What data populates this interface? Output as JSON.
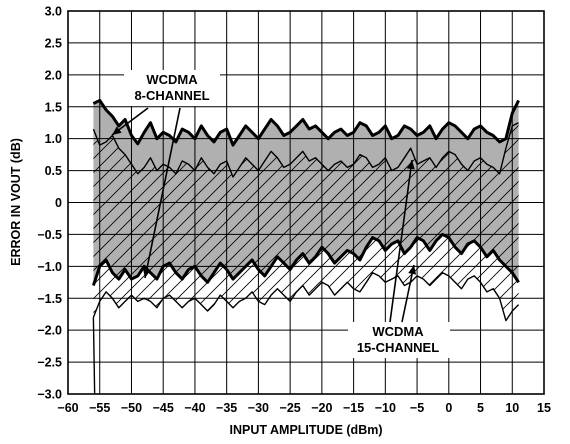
{
  "chart_data": {
    "type": "area",
    "xlabel": "INPUT AMPLITUDE (dBm)",
    "ylabel": "ERROR IN VOUT (dB)",
    "xlim": [
      -60,
      15
    ],
    "ylim": [
      -3.0,
      3.0
    ],
    "x_ticks": [
      -60,
      -55,
      -50,
      -45,
      -40,
      -35,
      -30,
      -25,
      -20,
      -15,
      -10,
      -5,
      0,
      5,
      10,
      15
    ],
    "x_tick_labels": [
      "−60",
      "−55",
      "−50",
      "−45",
      "−40",
      "−35",
      "−30",
      "−25",
      "−20",
      "−15",
      "−10",
      "−5",
      "0",
      "5",
      "10",
      "15"
    ],
    "y_ticks": [
      3.0,
      2.5,
      2.0,
      1.5,
      1.0,
      0.5,
      0,
      -0.5,
      -1.0,
      -1.5,
      -2.0,
      -2.5,
      -3.0
    ],
    "y_tick_labels": [
      "3.0",
      "2.5",
      "2.0",
      "1.5",
      "1.0",
      "0.5",
      "0",
      "−0.5",
      "−1.0",
      "−1.5",
      "−2.0",
      "−2.5",
      "−3.0"
    ],
    "grid": true,
    "colors": {
      "shaded_band": "#b0b0b0",
      "line": "#000000",
      "grid": "#000000"
    },
    "series": [
      {
        "name": "WCDMA 8-CHANNEL",
        "fill": "gray",
        "upper": {
          "x": [
            -56,
            -55,
            -54,
            -53,
            -52,
            -51,
            -50,
            -49,
            -48,
            -47,
            -46,
            -45,
            -44,
            -43,
            -42,
            -41,
            -40,
            -39,
            -38,
            -37,
            -36,
            -35,
            -34,
            -33,
            -32,
            -31,
            -30,
            -29,
            -28,
            -27,
            -26,
            -25,
            -24,
            -23,
            -22,
            -21,
            -20,
            -19,
            -18,
            -17,
            -16,
            -15,
            -14,
            -13,
            -12,
            -11,
            -10,
            -9,
            -8,
            -7,
            -6,
            -5,
            -4,
            -3,
            -2,
            -1,
            0,
            1,
            2,
            3,
            4,
            5,
            6,
            7,
            8,
            9,
            10,
            11
          ],
          "y": [
            1.55,
            1.6,
            1.45,
            1.35,
            1.2,
            1.3,
            1.05,
            0.92,
            1.1,
            1.25,
            1.0,
            1.1,
            1.05,
            0.95,
            1.15,
            1.1,
            1.0,
            1.2,
            1.05,
            0.95,
            1.1,
            1.15,
            0.9,
            1.05,
            1.2,
            1.1,
            1.0,
            1.15,
            1.3,
            1.2,
            1.05,
            1.1,
            1.2,
            1.3,
            1.15,
            1.2,
            1.1,
            1.0,
            1.1,
            1.15,
            1.05,
            1.1,
            1.25,
            1.2,
            1.05,
            1.1,
            1.2,
            1.0,
            1.05,
            1.2,
            1.15,
            1.05,
            1.1,
            1.2,
            1.0,
            1.15,
            1.25,
            1.2,
            1.1,
            1.0,
            1.15,
            1.2,
            1.1,
            1.05,
            0.95,
            1.0,
            1.4,
            1.6
          ]
        },
        "lower": {
          "x": [
            -56,
            -55,
            -54,
            -53,
            -52,
            -51,
            -50,
            -49,
            -48,
            -47,
            -46,
            -45,
            -44,
            -43,
            -42,
            -41,
            -40,
            -39,
            -38,
            -37,
            -36,
            -35,
            -34,
            -33,
            -32,
            -31,
            -30,
            -29,
            -28,
            -27,
            -26,
            -25,
            -24,
            -23,
            -22,
            -21,
            -20,
            -19,
            -18,
            -17,
            -16,
            -15,
            -14,
            -13,
            -12,
            -11,
            -10,
            -9,
            -8,
            -7,
            -6,
            -5,
            -4,
            -3,
            -2,
            -1,
            0,
            1,
            2,
            3,
            4,
            5,
            6,
            7,
            8,
            9,
            10,
            11
          ],
          "y": [
            -1.3,
            -1.0,
            -0.9,
            -1.1,
            -1.2,
            -1.05,
            -1.2,
            -1.15,
            -1.0,
            -1.1,
            -1.2,
            -1.0,
            -0.95,
            -1.1,
            -1.2,
            -1.05,
            -1.0,
            -1.15,
            -1.25,
            -1.1,
            -0.95,
            -1.05,
            -1.2,
            -1.1,
            -1.0,
            -0.9,
            -1.05,
            -1.15,
            -1.0,
            -0.85,
            -0.95,
            -1.05,
            -0.9,
            -0.8,
            -0.95,
            -0.85,
            -0.7,
            -0.8,
            -0.95,
            -0.85,
            -0.75,
            -0.8,
            -0.9,
            -0.7,
            -0.55,
            -0.6,
            -0.75,
            -0.65,
            -0.6,
            -0.8,
            -0.7,
            -0.55,
            -0.6,
            -0.75,
            -0.6,
            -0.5,
            -0.55,
            -0.7,
            -0.8,
            -0.65,
            -0.6,
            -0.7,
            -0.85,
            -0.75,
            -0.9,
            -1.0,
            -1.1,
            -1.25
          ]
        }
      },
      {
        "name": "WCDMA 15-CHANNEL",
        "fill": "hatched",
        "upper": {
          "x": [
            -56,
            -55,
            -54,
            -53,
            -52,
            -51,
            -50,
            -49,
            -48,
            -47,
            -46,
            -45,
            -44,
            -43,
            -42,
            -41,
            -40,
            -39,
            -38,
            -37,
            -36,
            -35,
            -34,
            -33,
            -32,
            -31,
            -30,
            -29,
            -28,
            -27,
            -26,
            -25,
            -24,
            -23,
            -22,
            -21,
            -20,
            -19,
            -18,
            -17,
            -16,
            -15,
            -14,
            -13,
            -12,
            -11,
            -10,
            -9,
            -8,
            -7,
            -6,
            -5,
            -4,
            -3,
            -2,
            -1,
            0,
            1,
            2,
            3,
            4,
            5,
            6,
            7,
            8,
            9,
            10,
            11
          ],
          "y": [
            1.15,
            0.9,
            0.95,
            1.05,
            0.85,
            0.75,
            0.6,
            0.45,
            0.55,
            0.7,
            0.5,
            0.6,
            0.55,
            0.45,
            0.65,
            0.6,
            0.5,
            0.7,
            0.55,
            0.45,
            0.6,
            0.65,
            0.4,
            0.55,
            0.7,
            0.6,
            0.5,
            0.65,
            0.8,
            0.7,
            0.55,
            0.6,
            0.7,
            0.8,
            0.65,
            0.7,
            0.6,
            0.5,
            0.6,
            0.65,
            0.55,
            0.6,
            0.75,
            0.7,
            0.55,
            0.6,
            0.7,
            0.5,
            0.55,
            0.7,
            0.85,
            0.6,
            0.65,
            0.7,
            0.55,
            0.7,
            0.8,
            0.75,
            0.6,
            0.5,
            0.65,
            0.7,
            0.6,
            0.55,
            0.45,
            0.85,
            1.2,
            1.25
          ]
        },
        "lower": {
          "x": [
            -56,
            -55,
            -54,
            -53,
            -52,
            -51,
            -50,
            -49,
            -48,
            -47,
            -46,
            -45,
            -44,
            -43,
            -42,
            -41,
            -40,
            -39,
            -38,
            -37,
            -36,
            -35,
            -34,
            -33,
            -32,
            -31,
            -30,
            -29,
            -28,
            -27,
            -26,
            -25,
            -24,
            -23,
            -22,
            -21,
            -20,
            -19,
            -18,
            -17,
            -16,
            -15,
            -14,
            -13,
            -12,
            -11,
            -10,
            -9,
            -8,
            -7,
            -6,
            -5,
            -4,
            -3,
            -2,
            -1,
            0,
            1,
            2,
            3,
            4,
            5,
            6,
            7,
            8,
            9,
            10,
            11
          ],
          "y": [
            -1.8,
            -1.55,
            -1.4,
            -1.5,
            -1.65,
            -1.55,
            -1.45,
            -1.55,
            -1.5,
            -1.55,
            -1.65,
            -1.5,
            -1.45,
            -1.55,
            -1.65,
            -1.55,
            -1.5,
            -1.6,
            -1.7,
            -1.6,
            -1.45,
            -1.55,
            -1.65,
            -1.55,
            -1.5,
            -1.4,
            -1.55,
            -1.6,
            -1.45,
            -1.35,
            -1.45,
            -1.55,
            -1.4,
            -1.3,
            -1.45,
            -1.35,
            -1.25,
            -1.3,
            -1.45,
            -1.35,
            -1.25,
            -1.35,
            -1.4,
            -1.25,
            -1.1,
            -1.15,
            -1.25,
            -1.2,
            -1.15,
            -1.3,
            -1.25,
            -1.15,
            -1.2,
            -1.3,
            -1.2,
            -1.1,
            -1.15,
            -1.25,
            -1.35,
            -1.2,
            -1.15,
            -1.25,
            -1.4,
            -1.35,
            -1.5,
            -1.85,
            -1.7,
            -1.6
          ]
        }
      }
    ],
    "annotations": [
      {
        "lines": [
          "WCDMA",
          "8-CHANNEL"
        ]
      },
      {
        "lines": [
          "WCDMA",
          "15-CHANNEL"
        ]
      }
    ]
  }
}
